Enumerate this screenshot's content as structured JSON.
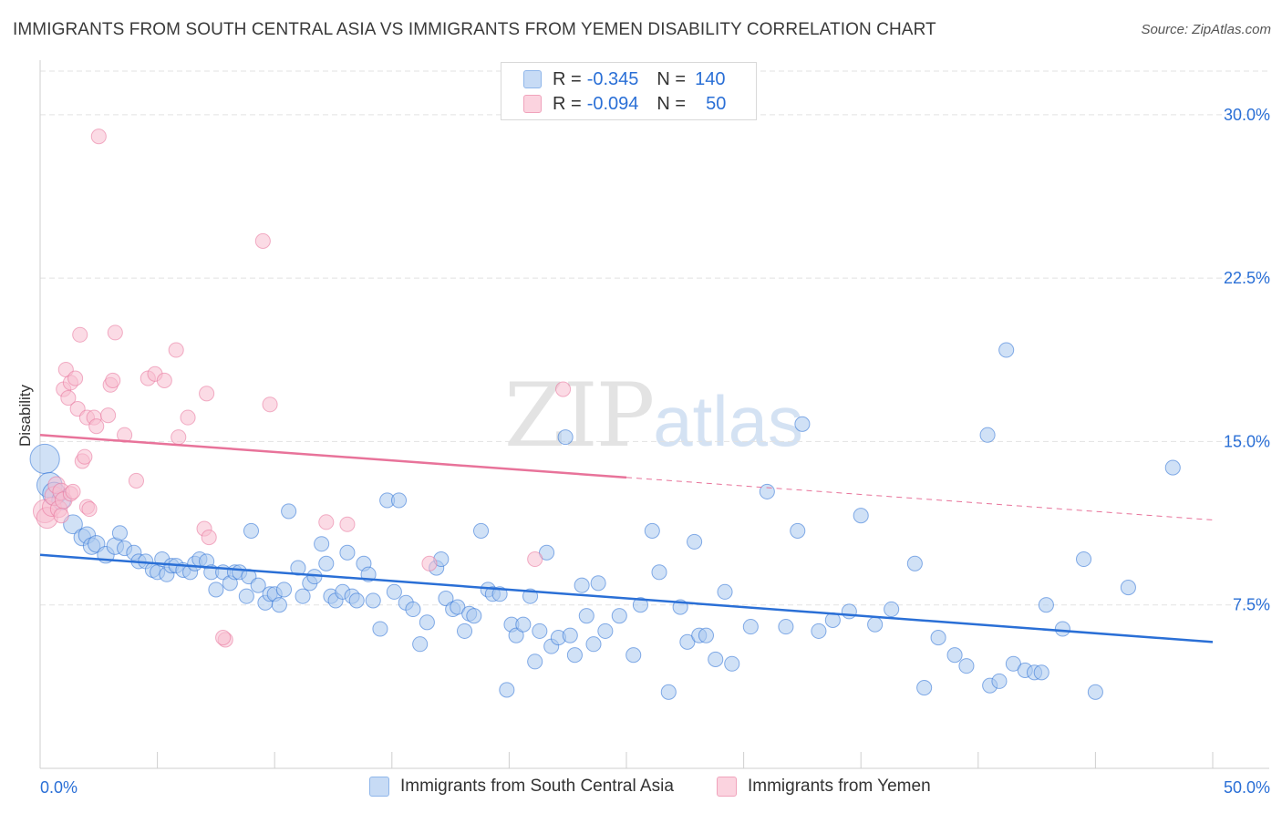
{
  "title": "IMMIGRANTS FROM SOUTH CENTRAL ASIA VS IMMIGRANTS FROM YEMEN DISABILITY CORRELATION CHART",
  "source": "Source: ZipAtlas.com",
  "watermark": {
    "zip": "ZIP",
    "atlas": "atlas"
  },
  "legend": {
    "r_label": "R =",
    "n_label": "N =",
    "rows": [
      {
        "r": "-0.345",
        "n": "140",
        "color": "#8fb6ea",
        "fill": "#c7dbf5"
      },
      {
        "r": "-0.094",
        "n": "50",
        "color": "#f0a3bc",
        "fill": "#fbd3df"
      }
    ]
  },
  "chart_data": {
    "type": "scatter",
    "title": "IMMIGRANTS FROM SOUTH CENTRAL ASIA VS IMMIGRANTS FROM YEMEN DISABILITY CORRELATION CHART",
    "xlabel": "",
    "ylabel": "Disability",
    "xlim": [
      0,
      50
    ],
    "ylim": [
      0,
      32
    ],
    "x_tick_labels": [
      "0.0%",
      "50.0%"
    ],
    "y_ticks": [
      7.5,
      15.0,
      22.5,
      30.0
    ],
    "y_tick_labels": [
      "7.5%",
      "15.0%",
      "22.5%",
      "30.0%"
    ],
    "grid": true,
    "legend_position": "top-center",
    "series": [
      {
        "name": "Immigrants from South Central Asia",
        "color": "#2a6fd6",
        "marker_fill": "#a9c8ef",
        "trend": {
          "x": [
            0,
            50
          ],
          "y": [
            9.8,
            5.8
          ],
          "dashed_from": null
        },
        "points": [
          [
            0.2,
            14.2,
            14
          ],
          [
            0.4,
            13.0,
            12
          ],
          [
            0.6,
            12.6,
            11
          ],
          [
            0.9,
            12.3,
            9
          ],
          [
            1.4,
            11.2,
            9
          ],
          [
            1.8,
            10.6,
            8
          ],
          [
            2.0,
            10.7,
            8
          ],
          [
            2.2,
            10.2,
            8
          ],
          [
            2.4,
            10.3,
            8
          ],
          [
            2.8,
            9.8,
            8
          ],
          [
            3.2,
            10.2,
            8
          ],
          [
            3.4,
            10.8,
            7
          ],
          [
            3.6,
            10.1,
            7
          ],
          [
            4.0,
            9.9,
            7
          ],
          [
            4.2,
            9.5,
            7
          ],
          [
            4.5,
            9.5,
            7
          ],
          [
            4.8,
            9.1,
            7
          ],
          [
            5.0,
            9.0,
            7
          ],
          [
            5.2,
            9.6,
            7
          ],
          [
            5.4,
            8.9,
            7
          ],
          [
            5.6,
            9.3,
            7
          ],
          [
            5.8,
            9.3,
            7
          ],
          [
            6.1,
            9.1,
            7
          ],
          [
            6.4,
            9.0,
            7
          ],
          [
            6.6,
            9.4,
            7
          ],
          [
            6.8,
            9.6,
            7
          ],
          [
            7.1,
            9.5,
            7
          ],
          [
            7.3,
            9.0,
            7
          ],
          [
            7.5,
            8.2,
            7
          ],
          [
            7.8,
            9.0,
            7
          ],
          [
            8.1,
            8.5,
            7
          ],
          [
            8.3,
            9.0,
            7
          ],
          [
            8.5,
            9.0,
            7
          ],
          [
            8.8,
            7.9,
            7
          ],
          [
            8.9,
            8.8,
            7
          ],
          [
            9.3,
            8.4,
            7
          ],
          [
            9.0,
            10.9,
            7
          ],
          [
            9.6,
            7.6,
            7
          ],
          [
            9.8,
            8.0,
            7
          ],
          [
            10.0,
            8.0,
            7
          ],
          [
            10.2,
            7.5,
            7
          ],
          [
            10.4,
            8.2,
            7
          ],
          [
            10.6,
            11.8,
            7
          ],
          [
            11.0,
            9.2,
            7
          ],
          [
            11.2,
            7.9,
            7
          ],
          [
            11.5,
            8.5,
            7
          ],
          [
            11.7,
            8.8,
            7
          ],
          [
            12.0,
            10.3,
            7
          ],
          [
            12.2,
            9.4,
            7
          ],
          [
            12.4,
            7.9,
            7
          ],
          [
            12.6,
            7.7,
            7
          ],
          [
            12.9,
            8.1,
            7
          ],
          [
            13.1,
            9.9,
            7
          ],
          [
            13.3,
            7.9,
            7
          ],
          [
            13.5,
            7.7,
            7
          ],
          [
            13.8,
            9.4,
            7
          ],
          [
            14.0,
            8.9,
            7
          ],
          [
            14.2,
            7.7,
            7
          ],
          [
            14.5,
            6.4,
            7
          ],
          [
            14.8,
            12.3,
            7
          ],
          [
            15.1,
            8.1,
            7
          ],
          [
            15.3,
            12.3,
            7
          ],
          [
            15.6,
            7.6,
            7
          ],
          [
            15.9,
            7.3,
            7
          ],
          [
            16.2,
            5.7,
            7
          ],
          [
            16.5,
            6.7,
            7
          ],
          [
            16.9,
            9.2,
            7
          ],
          [
            17.1,
            9.6,
            7
          ],
          [
            17.3,
            7.8,
            7
          ],
          [
            17.6,
            7.3,
            7
          ],
          [
            17.8,
            7.4,
            7
          ],
          [
            18.1,
            6.3,
            7
          ],
          [
            18.3,
            7.1,
            7
          ],
          [
            18.5,
            7.0,
            7
          ],
          [
            18.8,
            10.9,
            7
          ],
          [
            19.1,
            8.2,
            7
          ],
          [
            19.3,
            8.0,
            7
          ],
          [
            19.6,
            8.0,
            7
          ],
          [
            19.9,
            3.6,
            7
          ],
          [
            20.1,
            6.6,
            7
          ],
          [
            20.3,
            6.1,
            7
          ],
          [
            20.6,
            6.6,
            7
          ],
          [
            20.9,
            7.9,
            7
          ],
          [
            21.1,
            4.9,
            7
          ],
          [
            21.3,
            6.3,
            7
          ],
          [
            21.6,
            9.9,
            7
          ],
          [
            21.8,
            5.6,
            7
          ],
          [
            22.1,
            6.0,
            7
          ],
          [
            22.4,
            15.2,
            7
          ],
          [
            22.6,
            6.1,
            7
          ],
          [
            22.8,
            5.2,
            7
          ],
          [
            23.1,
            8.4,
            7
          ],
          [
            23.3,
            7.0,
            7
          ],
          [
            23.6,
            5.7,
            7
          ],
          [
            23.8,
            8.5,
            7
          ],
          [
            24.1,
            6.3,
            7
          ],
          [
            24.7,
            7.0,
            7
          ],
          [
            25.3,
            5.2,
            7
          ],
          [
            25.6,
            7.5,
            7
          ],
          [
            26.1,
            10.9,
            7
          ],
          [
            26.4,
            9.0,
            7
          ],
          [
            26.8,
            3.5,
            7
          ],
          [
            27.3,
            7.4,
            7
          ],
          [
            27.6,
            5.8,
            7
          ],
          [
            27.9,
            10.4,
            7
          ],
          [
            28.1,
            6.1,
            7
          ],
          [
            28.4,
            6.1,
            7
          ],
          [
            28.8,
            5.0,
            7
          ],
          [
            29.2,
            8.1,
            7
          ],
          [
            29.5,
            4.8,
            7
          ],
          [
            30.3,
            6.5,
            7
          ],
          [
            31.0,
            12.7,
            7
          ],
          [
            31.8,
            6.5,
            7
          ],
          [
            32.3,
            10.9,
            7
          ],
          [
            32.5,
            15.8,
            7
          ],
          [
            33.2,
            6.3,
            7
          ],
          [
            33.8,
            6.8,
            7
          ],
          [
            34.5,
            7.2,
            7
          ],
          [
            35.0,
            11.6,
            7
          ],
          [
            35.6,
            6.6,
            7
          ],
          [
            36.3,
            7.3,
            7
          ],
          [
            37.3,
            9.4,
            7
          ],
          [
            37.7,
            3.7,
            7
          ],
          [
            38.3,
            6.0,
            7
          ],
          [
            39.0,
            5.2,
            7
          ],
          [
            39.5,
            4.7,
            7
          ],
          [
            40.4,
            15.3,
            7
          ],
          [
            40.5,
            3.8,
            7
          ],
          [
            40.9,
            4.0,
            7
          ],
          [
            41.2,
            19.2,
            7
          ],
          [
            41.5,
            4.8,
            7
          ],
          [
            42.0,
            4.5,
            7
          ],
          [
            42.4,
            4.4,
            7
          ],
          [
            42.7,
            4.4,
            7
          ],
          [
            42.9,
            7.5,
            7
          ],
          [
            43.6,
            6.4,
            7
          ],
          [
            44.5,
            9.6,
            7
          ],
          [
            45.0,
            3.5,
            7
          ],
          [
            46.4,
            8.3,
            7
          ],
          [
            48.3,
            13.8,
            7
          ]
        ]
      },
      {
        "name": "Immigrants from Yemen",
        "color": "#e8739a",
        "marker_fill": "#f7bdd0",
        "trend": {
          "x": [
            0,
            50
          ],
          "y": [
            15.3,
            11.4
          ],
          "dashed_from": 25
        },
        "points": [
          [
            0.2,
            11.8,
            11
          ],
          [
            0.3,
            11.5,
            10
          ],
          [
            0.5,
            12.0,
            9
          ],
          [
            0.6,
            12.5,
            9
          ],
          [
            0.7,
            13.0,
            8
          ],
          [
            0.8,
            11.9,
            8
          ],
          [
            0.9,
            12.7,
            8
          ],
          [
            1.0,
            12.3,
            8
          ],
          [
            1.0,
            17.4,
            7
          ],
          [
            1.1,
            18.3,
            7
          ],
          [
            1.2,
            17.0,
            7
          ],
          [
            1.3,
            12.6,
            7
          ],
          [
            1.3,
            17.7,
            7
          ],
          [
            1.5,
            17.9,
            7
          ],
          [
            1.6,
            16.5,
            7
          ],
          [
            1.7,
            19.9,
            7
          ],
          [
            1.8,
            14.1,
            7
          ],
          [
            1.9,
            14.3,
            7
          ],
          [
            2.0,
            16.1,
            7
          ],
          [
            2.0,
            12.0,
            7
          ],
          [
            2.1,
            11.9,
            7
          ],
          [
            2.3,
            16.1,
            7
          ],
          [
            2.4,
            15.7,
            7
          ],
          [
            2.5,
            29.0,
            7
          ],
          [
            2.9,
            16.2,
            7
          ],
          [
            3.0,
            17.6,
            7
          ],
          [
            3.1,
            17.8,
            7
          ],
          [
            3.2,
            20.0,
            7
          ],
          [
            3.6,
            15.3,
            7
          ],
          [
            4.1,
            13.2,
            7
          ],
          [
            4.6,
            17.9,
            7
          ],
          [
            4.9,
            18.1,
            7
          ],
          [
            5.3,
            17.8,
            7
          ],
          [
            5.8,
            19.2,
            7
          ],
          [
            5.9,
            15.2,
            7
          ],
          [
            6.3,
            16.1,
            7
          ],
          [
            7.0,
            11.0,
            7
          ],
          [
            7.1,
            17.2,
            7
          ],
          [
            7.2,
            10.6,
            7
          ],
          [
            7.9,
            5.9,
            7
          ],
          [
            7.8,
            6.0,
            7
          ],
          [
            9.5,
            24.2,
            7
          ],
          [
            9.8,
            16.7,
            7
          ],
          [
            12.2,
            11.3,
            7
          ],
          [
            13.1,
            11.2,
            7
          ],
          [
            16.6,
            9.4,
            7
          ],
          [
            21.1,
            9.6,
            7
          ],
          [
            22.3,
            17.4,
            7
          ],
          [
            1.4,
            12.7,
            7
          ],
          [
            0.9,
            11.6,
            7
          ]
        ]
      }
    ]
  }
}
